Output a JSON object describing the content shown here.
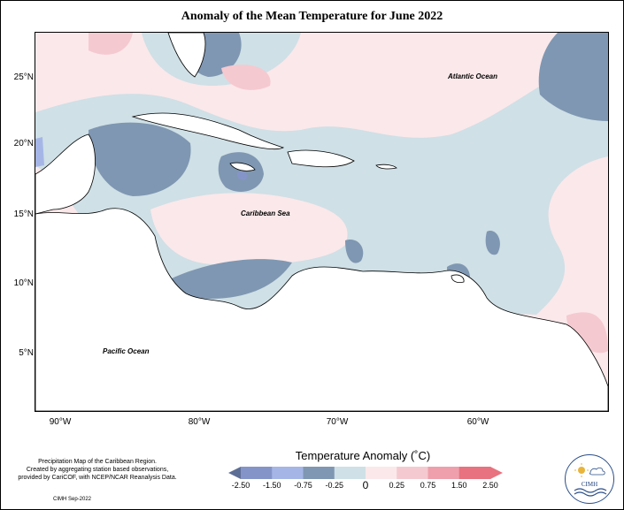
{
  "title": "Anomaly of the Mean Temperature for June 2022",
  "latitude_labels": [
    "25°N",
    "20°N",
    "15°N",
    "10°N",
    "5°N"
  ],
  "longitude_labels": [
    "90°W",
    "80°W",
    "70°W",
    "60°W"
  ],
  "ocean_labels": {
    "atlantic": "Atlantic Ocean",
    "caribbean": "Caribbean Sea",
    "pacific": "Pacific Ocean"
  },
  "credit": {
    "line1": "Precipitation Map of the Caribbean Region.",
    "line2": "Created by aggregating station based observations,",
    "line3": "provided by CariCOF, with NCEP/NCAR Reanalysis Data.",
    "date": "CIMH Sep-2022"
  },
  "legend": {
    "title": "Temperature Anomaly (˚C)",
    "labels": [
      "-2.50",
      "-1.50",
      "-0.75",
      "-0.25",
      "0",
      "0.25",
      "0.75",
      "1.50",
      "2.50"
    ],
    "colors": [
      "#5d6e96",
      "#8594c8",
      "#a5b6e6",
      "#7f97b2",
      "#cfe0e6",
      "#fbe8ea",
      "#f5c9d0",
      "#ee9fab",
      "#e8727f"
    ]
  },
  "logo": {
    "text": "CIMH"
  }
}
